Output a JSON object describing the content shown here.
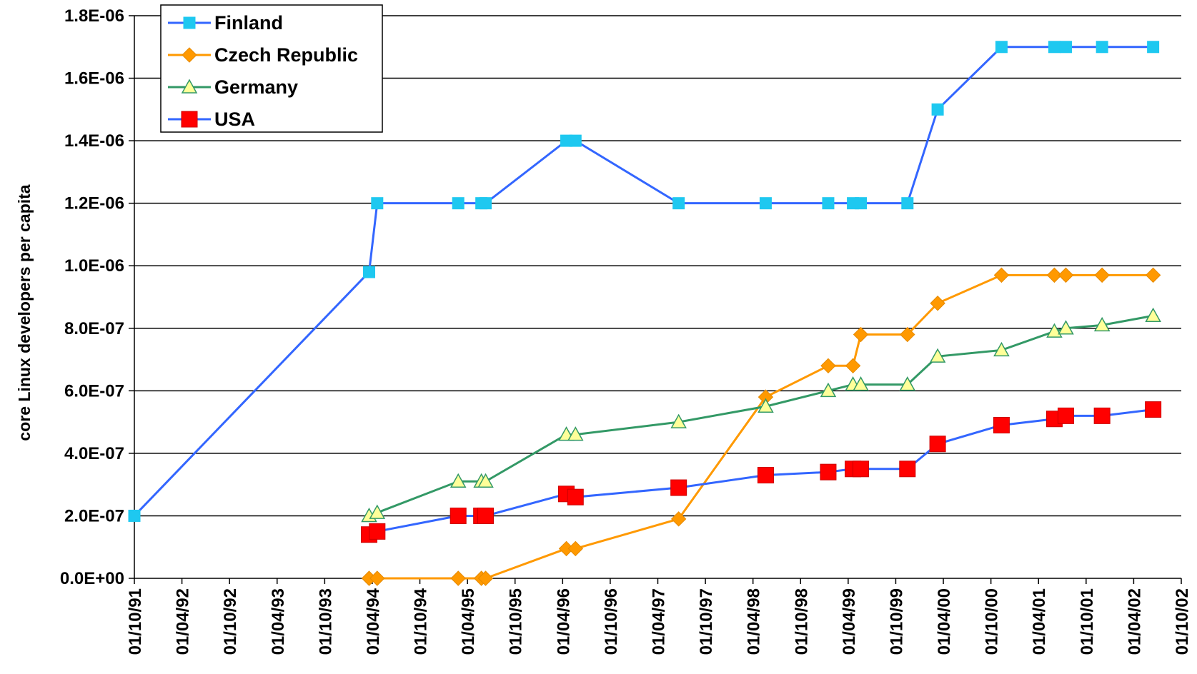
{
  "chart_data": {
    "type": "line",
    "title": "",
    "xlabel": "",
    "ylabel": "core Linux developers per capita",
    "x_ticks": [
      "01/10/91",
      "01/04/92",
      "01/10/92",
      "01/04/93",
      "01/10/93",
      "01/04/94",
      "01/10/94",
      "01/04/95",
      "01/10/95",
      "01/04/96",
      "01/10/96",
      "01/04/97",
      "01/10/97",
      "01/04/98",
      "01/10/98",
      "01/04/99",
      "01/10/99",
      "01/04/00",
      "01/10/00",
      "01/04/01",
      "01/10/01",
      "01/04/02",
      "01/10/02"
    ],
    "y_ticks": [
      "0.0E+00",
      "2.0E-07",
      "4.0E-07",
      "6.0E-07",
      "8.0E-07",
      "1.0E-06",
      "1.2E-06",
      "1.4E-06",
      "1.6E-06",
      "1.8E-06"
    ],
    "ylim": [
      0,
      1.8e-06
    ],
    "xlim": [
      "1991-10-01",
      "2002-10-01"
    ],
    "grid": "horizontal",
    "legend_position": "top-left",
    "series": [
      {
        "name": "Finland",
        "color": "#3366FF",
        "marker": "square",
        "marker_color": "#1EC8F0",
        "points": [
          [
            "1991-10-01",
            2e-07
          ],
          [
            "1994-03-20",
            9.8e-07
          ],
          [
            "1994-04-20",
            1.2e-06
          ],
          [
            "1995-02-25",
            1.2e-06
          ],
          [
            "1995-05-25",
            1.2e-06
          ],
          [
            "1995-06-10",
            1.2e-06
          ],
          [
            "1996-04-15",
            1.4e-06
          ],
          [
            "1996-05-20",
            1.4e-06
          ],
          [
            "1997-06-20",
            1.2e-06
          ],
          [
            "1998-05-20",
            1.2e-06
          ],
          [
            "1999-01-15",
            1.2e-06
          ],
          [
            "1999-04-20",
            1.2e-06
          ],
          [
            "1999-05-20",
            1.2e-06
          ],
          [
            "1999-11-15",
            1.2e-06
          ],
          [
            "2000-03-10",
            1.5e-06
          ],
          [
            "2000-11-10",
            1.7e-06
          ],
          [
            "2001-06-01",
            1.7e-06
          ],
          [
            "2001-07-15",
            1.7e-06
          ],
          [
            "2001-12-01",
            1.7e-06
          ],
          [
            "2002-06-15",
            1.7e-06
          ]
        ]
      },
      {
        "name": "Czech Republic",
        "color": "#FF9900",
        "marker": "diamond",
        "marker_color": "#FF9900",
        "points": [
          [
            "1994-03-20",
            0
          ],
          [
            "1994-04-20",
            0
          ],
          [
            "1995-02-25",
            0
          ],
          [
            "1995-05-25",
            0
          ],
          [
            "1995-06-10",
            0
          ],
          [
            "1996-04-15",
            9.5e-08
          ],
          [
            "1996-05-20",
            9.5e-08
          ],
          [
            "1997-06-20",
            1.9e-07
          ],
          [
            "1998-05-20",
            5.8e-07
          ],
          [
            "1999-01-15",
            6.8e-07
          ],
          [
            "1999-04-20",
            6.8e-07
          ],
          [
            "1999-05-20",
            7.8e-07
          ],
          [
            "1999-11-15",
            7.8e-07
          ],
          [
            "2000-03-10",
            8.8e-07
          ],
          [
            "2000-11-10",
            9.7e-07
          ],
          [
            "2001-06-01",
            9.7e-07
          ],
          [
            "2001-07-15",
            9.7e-07
          ],
          [
            "2001-12-01",
            9.7e-07
          ],
          [
            "2002-06-15",
            9.7e-07
          ]
        ]
      },
      {
        "name": "Germany",
        "color": "#339966",
        "marker": "triangle",
        "marker_color": "#FFFF99",
        "points": [
          [
            "1994-03-20",
            2e-07
          ],
          [
            "1994-04-20",
            2.1e-07
          ],
          [
            "1995-02-25",
            3.1e-07
          ],
          [
            "1995-05-25",
            3.1e-07
          ],
          [
            "1995-06-10",
            3.1e-07
          ],
          [
            "1996-04-15",
            4.6e-07
          ],
          [
            "1996-05-20",
            4.6e-07
          ],
          [
            "1997-06-20",
            5e-07
          ],
          [
            "1998-05-20",
            5.5e-07
          ],
          [
            "1999-01-15",
            6e-07
          ],
          [
            "1999-04-20",
            6.2e-07
          ],
          [
            "1999-05-20",
            6.2e-07
          ],
          [
            "1999-11-15",
            6.2e-07
          ],
          [
            "2000-03-10",
            7.1e-07
          ],
          [
            "2000-11-10",
            7.3e-07
          ],
          [
            "2001-06-01",
            7.9e-07
          ],
          [
            "2001-07-15",
            8e-07
          ],
          [
            "2001-12-01",
            8.1e-07
          ],
          [
            "2002-06-15",
            8.4e-07
          ]
        ]
      },
      {
        "name": "USA",
        "color": "#3366FF",
        "marker": "square",
        "marker_color": "#FF0000",
        "points": [
          [
            "1994-03-20",
            1.4e-07
          ],
          [
            "1994-04-20",
            1.5e-07
          ],
          [
            "1995-02-25",
            2e-07
          ],
          [
            "1995-05-25",
            2e-07
          ],
          [
            "1995-06-10",
            2e-07
          ],
          [
            "1996-04-15",
            2.7e-07
          ],
          [
            "1996-05-20",
            2.6e-07
          ],
          [
            "1997-06-20",
            2.9e-07
          ],
          [
            "1998-05-20",
            3.3e-07
          ],
          [
            "1999-01-15",
            3.4e-07
          ],
          [
            "1999-04-20",
            3.5e-07
          ],
          [
            "1999-05-20",
            3.5e-07
          ],
          [
            "1999-11-15",
            3.5e-07
          ],
          [
            "2000-03-10",
            4.3e-07
          ],
          [
            "2000-11-10",
            4.9e-07
          ],
          [
            "2001-06-01",
            5.1e-07
          ],
          [
            "2001-07-15",
            5.2e-07
          ],
          [
            "2001-12-01",
            5.2e-07
          ],
          [
            "2002-06-15",
            5.4e-07
          ]
        ]
      }
    ]
  }
}
